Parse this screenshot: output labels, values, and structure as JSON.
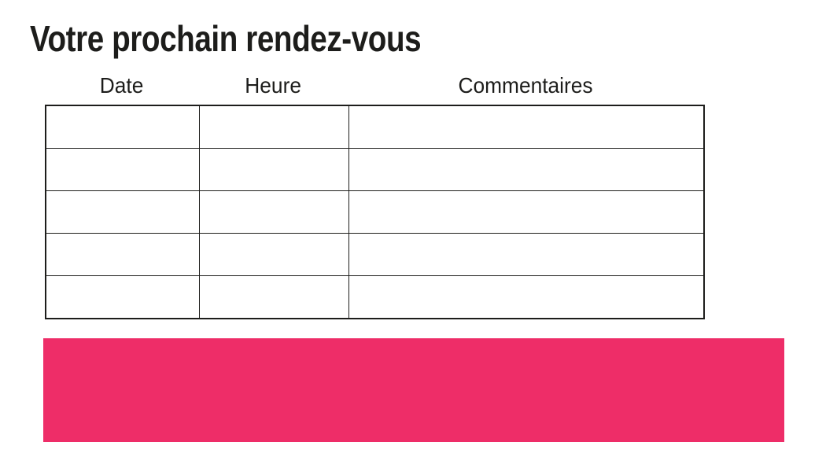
{
  "page": {
    "title": "Votre prochain rendez-vous"
  },
  "table": {
    "headers": [
      "Date",
      "Heure",
      "Commentaires"
    ],
    "rows": [
      [
        "",
        "",
        ""
      ],
      [
        "",
        "",
        ""
      ],
      [
        "",
        "",
        ""
      ],
      [
        "",
        "",
        ""
      ],
      [
        "",
        "",
        ""
      ]
    ]
  },
  "colors": {
    "accent_pink": "#EE2D68",
    "table_border": "#1D1D1B",
    "text": "#1D1D1B"
  }
}
